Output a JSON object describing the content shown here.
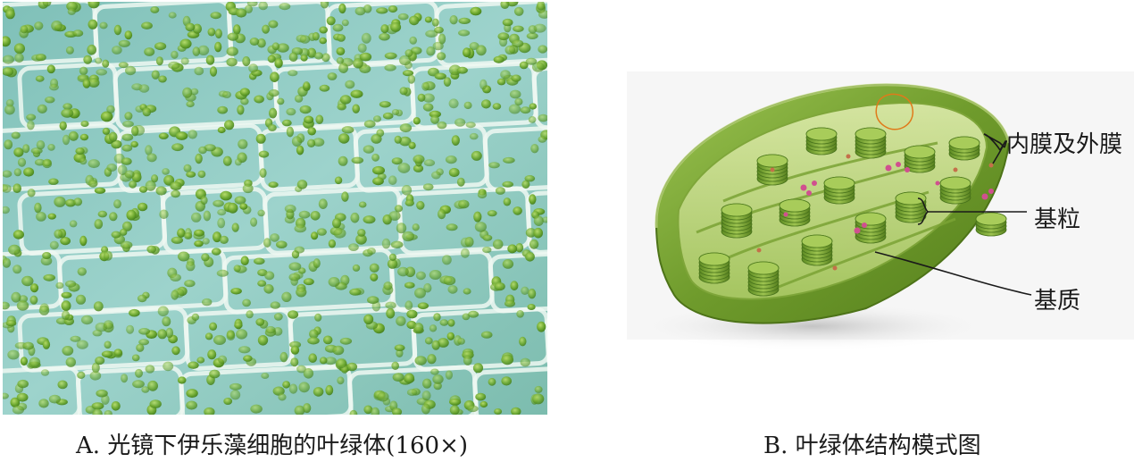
{
  "panel_a": {
    "caption": "A. 光镜下伊乐藻细胞的叶绿体(160×)",
    "image": "micrograph of Elodea leaf cells with green chloroplasts",
    "colors": {
      "background": "#8fc9c4",
      "cell_wall": "#e6f4ee",
      "chloroplast": "#5d9d2a"
    }
  },
  "panel_b": {
    "caption": "B. 叶绿体结构模式图",
    "image": "cut-away 3D model of a chloroplast",
    "labels": {
      "membranes": "内膜及外膜",
      "grana": "基粒",
      "stroma": "基质"
    },
    "colors": {
      "outer_shell": "#7aa63a",
      "inner": "#c6da84",
      "granum": "#6e9a2c"
    }
  }
}
